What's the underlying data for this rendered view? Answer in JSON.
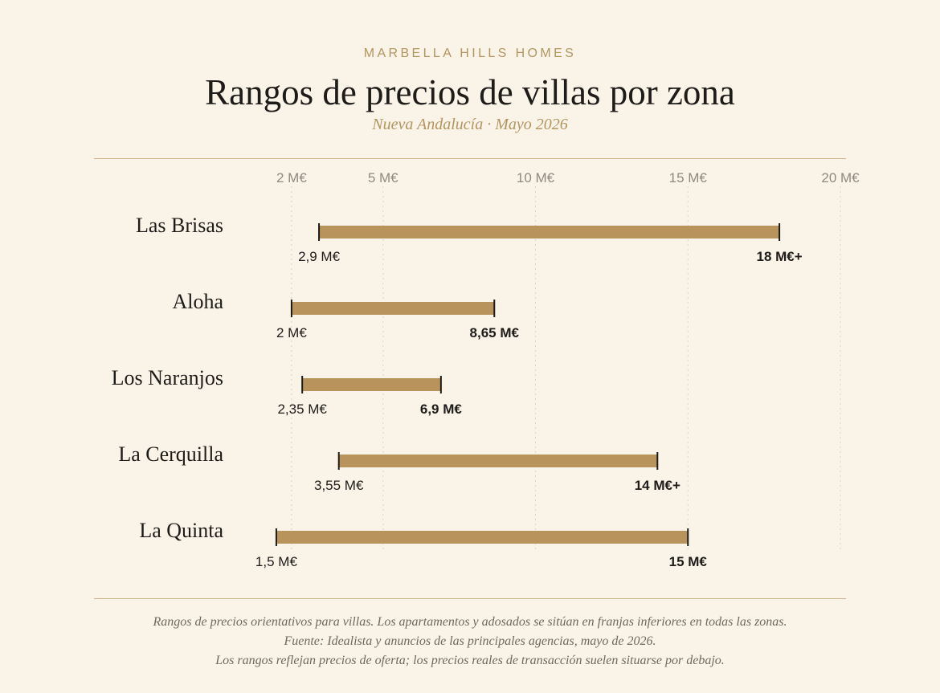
{
  "header": {
    "brand": "MARBELLA HILLS HOMES",
    "title": "Rangos de precios de villas por zona",
    "subtitle": "Nueva Andalucía · Mayo 2026"
  },
  "chart_data": {
    "type": "range-bar",
    "unit": "M€",
    "xlim": [
      0,
      20
    ],
    "ticks": [
      {
        "value": 2,
        "label": "2 M€"
      },
      {
        "value": 5,
        "label": "5 M€"
      },
      {
        "value": 10,
        "label": "10 M€"
      },
      {
        "value": 15,
        "label": "15 M€"
      },
      {
        "value": 20,
        "label": "20 M€"
      }
    ],
    "grid": true,
    "colors": {
      "bar": "#b8935b",
      "cap": "#1e1c19",
      "grid": "#d9d3c8",
      "tick": "#8f897f"
    },
    "rows": [
      {
        "zone": "Las Brisas",
        "min": 2.9,
        "max": 18,
        "min_label": "2,9 M€",
        "max_label": "18 M€+"
      },
      {
        "zone": "Aloha",
        "min": 2,
        "max": 8.65,
        "min_label": "2 M€",
        "max_label": "8,65 M€"
      },
      {
        "zone": "Los Naranjos",
        "min": 2.35,
        "max": 6.9,
        "min_label": "2,35 M€",
        "max_label": "6,9 M€"
      },
      {
        "zone": "La Cerquilla",
        "min": 3.55,
        "max": 14,
        "min_label": "3,55 M€",
        "max_label": "14 M€+"
      },
      {
        "zone": "La Quinta",
        "min": 1.5,
        "max": 15,
        "min_label": "1,5 M€",
        "max_label": "15 M€"
      }
    ]
  },
  "footer": {
    "line1": "Rangos de precios orientativos para villas. Los apartamentos y adosados se sitúan en franjas inferiores en todas las zonas.",
    "line2": "Fuente: Idealista y anuncios de las principales agencias, mayo de 2026.",
    "line3": "Los rangos reflejan precios de oferta; los precios reales de transacción suelen situarse por debajo."
  }
}
